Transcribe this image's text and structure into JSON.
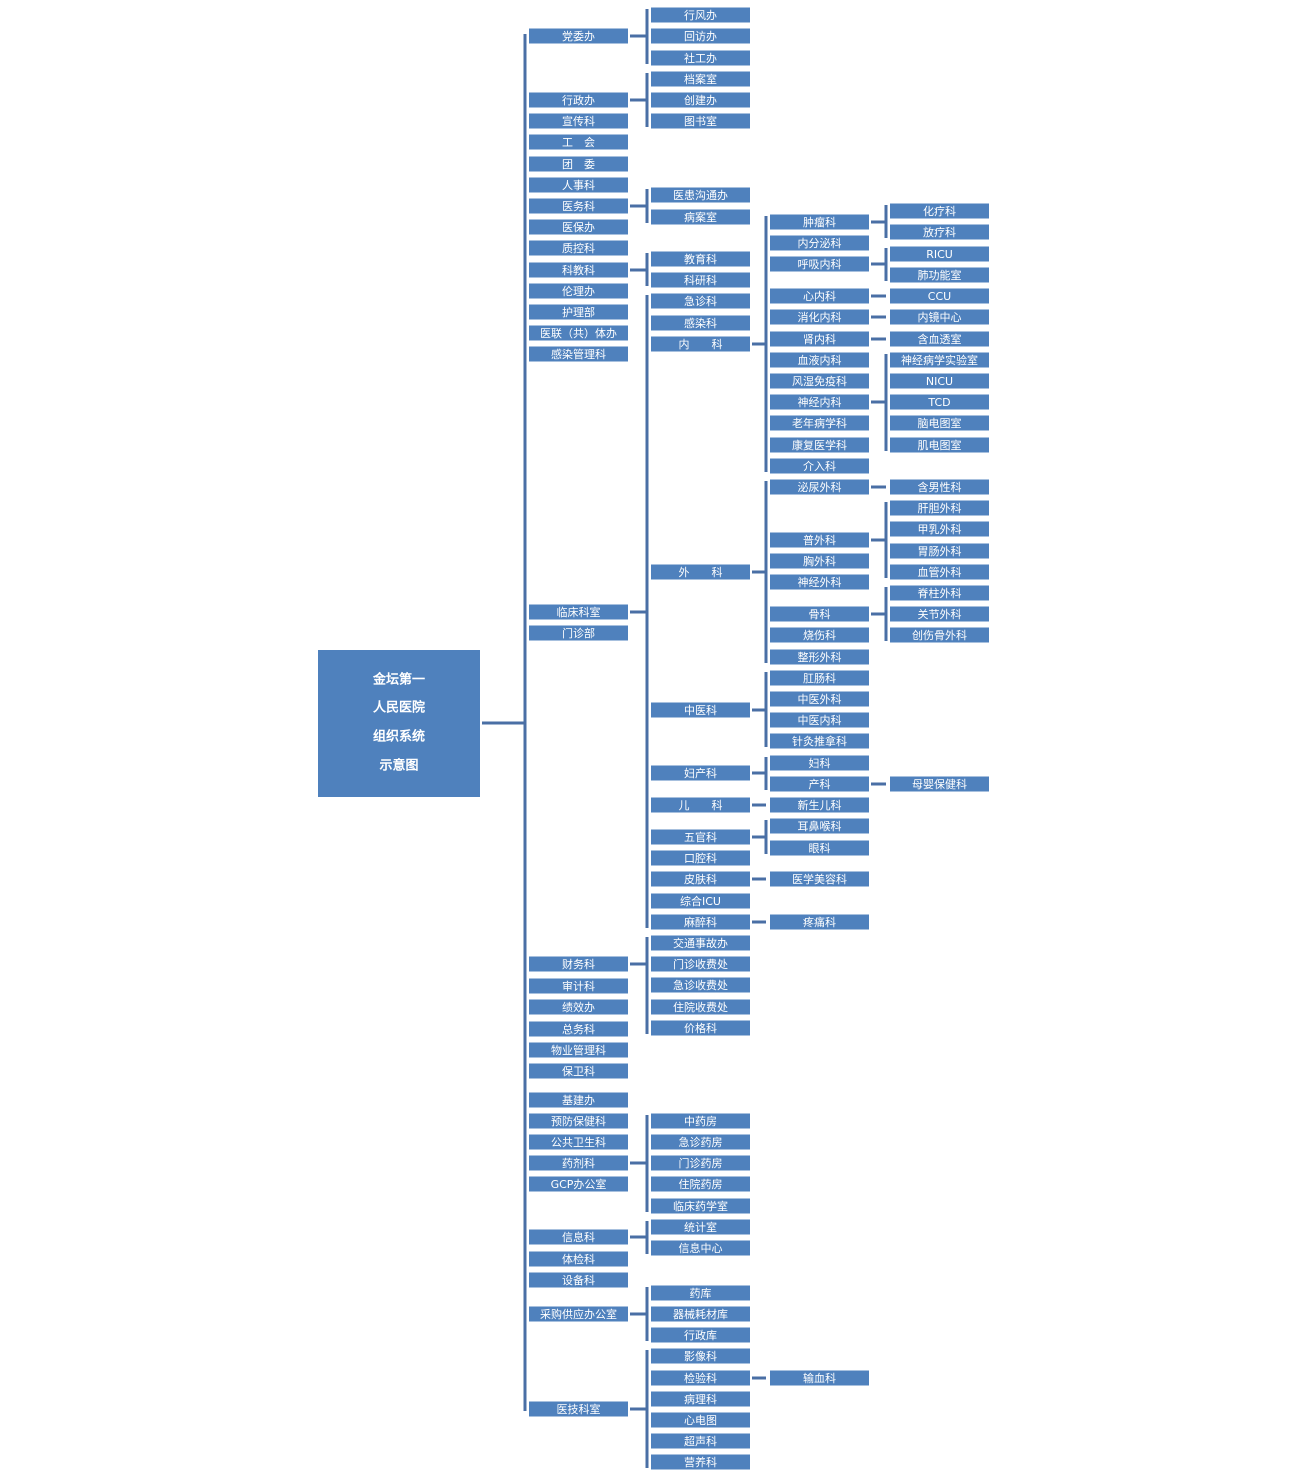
{
  "root": {
    "lines": [
      "金坛第一",
      "人民医院",
      "组织系统",
      "示意图"
    ]
  },
  "departments": [
    {
      "label": "党委办",
      "children": [
        {
          "label": "行风办"
        },
        {
          "label": "回访办"
        },
        {
          "label": "社工办"
        }
      ]
    },
    {
      "label": "行政办",
      "children": [
        {
          "label": "档案室"
        },
        {
          "label": "创建办"
        },
        {
          "label": "图书室"
        }
      ]
    },
    {
      "label": "宣传科"
    },
    {
      "label": "工　会"
    },
    {
      "label": "团　委"
    },
    {
      "label": "人事科"
    },
    {
      "label": "医务科",
      "children": [
        {
          "label": "医患沟通办"
        },
        {
          "label": "病案室"
        }
      ]
    },
    {
      "label": "医保办"
    },
    {
      "label": "质控科"
    },
    {
      "label": "科教科",
      "children": [
        {
          "label": "教育科"
        },
        {
          "label": "科研科"
        }
      ]
    },
    {
      "label": "伦理办"
    },
    {
      "label": "护理部"
    },
    {
      "label": "医联（共）体办"
    },
    {
      "label": "感染管理科"
    },
    {
      "label": "临床科室",
      "children": [
        {
          "label": "急诊科"
        },
        {
          "label": "感染科"
        },
        {
          "label": "内　　科",
          "children": [
            {
              "label": "肿瘤科",
              "children": [
                {
                  "label": "化疗科"
                },
                {
                  "label": "放疗科"
                }
              ]
            },
            {
              "label": "内分泌科"
            },
            {
              "label": "呼吸内科",
              "children": [
                {
                  "label": "RICU"
                },
                {
                  "label": "肺功能室"
                }
              ]
            },
            {
              "label": "心内科",
              "children": [
                {
                  "label": "CCU"
                }
              ]
            },
            {
              "label": "消化内科",
              "children": [
                {
                  "label": "内镜中心"
                }
              ]
            },
            {
              "label": "肾内科",
              "children": [
                {
                  "label": "含血透室"
                }
              ]
            },
            {
              "label": "血液内科"
            },
            {
              "label": "风湿免疫科"
            },
            {
              "label": "神经内科",
              "children": [
                {
                  "label": "神经病学实验室"
                },
                {
                  "label": "NICU"
                },
                {
                  "label": "TCD"
                },
                {
                  "label": "脑电图室"
                },
                {
                  "label": "肌电图室"
                }
              ]
            },
            {
              "label": "老年病学科"
            },
            {
              "label": "康复医学科"
            },
            {
              "label": "介入科"
            }
          ]
        },
        {
          "label": "外　　科",
          "children": [
            {
              "label": "泌尿外科",
              "children": [
                {
                  "label": "含男性科"
                }
              ]
            },
            {
              "label": "普外科",
              "children": [
                {
                  "label": "肝胆外科"
                },
                {
                  "label": "甲乳外科"
                },
                {
                  "label": "胃肠外科"
                },
                {
                  "label": "血管外科"
                }
              ]
            },
            {
              "label": "胸外科"
            },
            {
              "label": "神经外科"
            },
            {
              "label": "骨科",
              "children": [
                {
                  "label": "脊柱外科"
                },
                {
                  "label": "关节外科"
                },
                {
                  "label": "创伤骨外科"
                }
              ]
            },
            {
              "label": "烧伤科"
            },
            {
              "label": "整形外科"
            }
          ]
        },
        {
          "label": "中医科",
          "children": [
            {
              "label": "肛肠科"
            },
            {
              "label": "中医外科"
            },
            {
              "label": "中医内科"
            },
            {
              "label": "针灸推拿科"
            }
          ]
        },
        {
          "label": "妇产科",
          "children": [
            {
              "label": "妇科"
            },
            {
              "label": "产科",
              "children": [
                {
                  "label": "母婴保健科"
                }
              ]
            }
          ]
        },
        {
          "label": "儿　　科",
          "children": [
            {
              "label": "新生儿科"
            }
          ]
        },
        {
          "label": "五官科",
          "children": [
            {
              "label": "耳鼻喉科"
            },
            {
              "label": "眼科"
            }
          ]
        },
        {
          "label": "口腔科"
        },
        {
          "label": "皮肤科",
          "children": [
            {
              "label": "医学美容科"
            }
          ]
        },
        {
          "label": "综合ICU"
        },
        {
          "label": "麻醉科",
          "children": [
            {
              "label": "疼痛科"
            }
          ]
        }
      ]
    },
    {
      "label": "门诊部"
    },
    {
      "label": "财务科",
      "children": [
        {
          "label": "交通事故办"
        },
        {
          "label": "门诊收费处"
        },
        {
          "label": "急诊收费处"
        },
        {
          "label": "住院收费处"
        },
        {
          "label": "价格科"
        }
      ]
    },
    {
      "label": "审计科"
    },
    {
      "label": "绩效办"
    },
    {
      "label": "总务科"
    },
    {
      "label": "物业管理科"
    },
    {
      "label": "保卫科"
    },
    {
      "label": "基建办"
    },
    {
      "label": "预防保健科"
    },
    {
      "label": "公共卫生科"
    },
    {
      "label": "药剂科",
      "children": [
        {
          "label": "中药房"
        },
        {
          "label": "急诊药房"
        },
        {
          "label": "门诊药房"
        },
        {
          "label": "住院药房"
        },
        {
          "label": "临床药学室"
        }
      ]
    },
    {
      "label": "GCP办公室"
    },
    {
      "label": "信息科",
      "children": [
        {
          "label": "统计室"
        },
        {
          "label": "信息中心"
        }
      ]
    },
    {
      "label": "体检科"
    },
    {
      "label": "设备科"
    },
    {
      "label": "采购供应办公室",
      "children": [
        {
          "label": "药库"
        },
        {
          "label": "器械耗材库"
        },
        {
          "label": "行政库"
        }
      ]
    },
    {
      "label": "医技科室",
      "children": [
        {
          "label": "影像科"
        },
        {
          "label": "检验科",
          "children": [
            {
              "label": "输血科"
            }
          ]
        },
        {
          "label": "病理科"
        },
        {
          "label": "心电图"
        },
        {
          "label": "超声科"
        },
        {
          "label": "营养科"
        }
      ]
    }
  ]
}
